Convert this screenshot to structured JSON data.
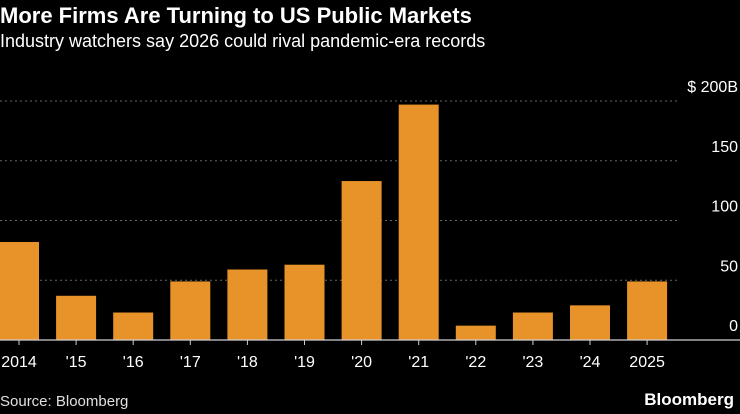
{
  "header": {
    "title": "More Firms Are Turning to US Public Markets",
    "subtitle": "Industry watchers say 2026 could rival pandemic-era records"
  },
  "footer": {
    "source": "Source: Bloomberg",
    "brand": "Bloomberg"
  },
  "colors": {
    "background": "#000000",
    "bar": "#e8922a",
    "grid": "#666666",
    "text": "#ffffff"
  },
  "chart_data": {
    "type": "bar",
    "title": "More Firms Are Turning to US Public Markets",
    "subtitle": "Industry watchers say 2026 could rival pandemic-era records",
    "xlabel": "",
    "ylabel": "",
    "categories": [
      "2014",
      "'15",
      "'16",
      "'17",
      "'18",
      "'19",
      "'20",
      "'21",
      "'22",
      "'23",
      "'24",
      "2025"
    ],
    "values": [
      82,
      37,
      23,
      49,
      59,
      63,
      133,
      197,
      12,
      23,
      29,
      49
    ],
    "ylim": [
      0,
      200
    ],
    "yticks": [
      0,
      50,
      100,
      150,
      200
    ],
    "ytick_labels": [
      "0",
      "50",
      "100",
      "150",
      "$ 200B"
    ],
    "grid": true,
    "y_axis_position": "right",
    "legend": "none"
  }
}
